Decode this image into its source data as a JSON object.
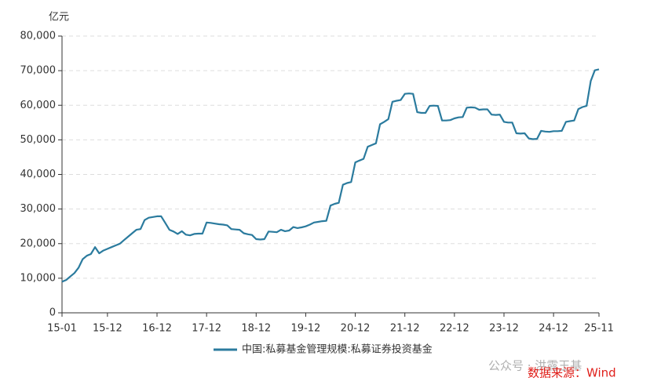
{
  "chart_data": {
    "type": "line",
    "y_unit": "亿元",
    "categories": [
      "15-01",
      null,
      null,
      null,
      null,
      null,
      null,
      null,
      null,
      null,
      null,
      "15-12",
      null,
      null,
      null,
      null,
      null,
      null,
      null,
      null,
      null,
      null,
      null,
      "16-12",
      null,
      null,
      null,
      null,
      null,
      null,
      null,
      null,
      null,
      null,
      null,
      "17-12",
      null,
      null,
      null,
      null,
      null,
      null,
      null,
      null,
      null,
      null,
      null,
      "18-12",
      null,
      null,
      null,
      null,
      null,
      null,
      null,
      null,
      null,
      null,
      null,
      "19-12",
      null,
      null,
      null,
      null,
      null,
      null,
      null,
      null,
      null,
      null,
      null,
      "20-12",
      null,
      null,
      null,
      null,
      null,
      null,
      null,
      null,
      null,
      null,
      null,
      "21-12",
      null,
      null,
      null,
      null,
      null,
      null,
      null,
      null,
      null,
      null,
      null,
      "22-12",
      null,
      null,
      null,
      null,
      null,
      null,
      null,
      null,
      null,
      null,
      null,
      "23-12",
      null,
      null,
      null,
      null,
      null,
      null,
      null,
      null,
      null,
      null,
      null,
      "24-12",
      null,
      null,
      null,
      null,
      null,
      null,
      null,
      null,
      null,
      null,
      "25-11"
    ],
    "series": [
      {
        "name": "中国:私募基金管理规模:私募证券投资基金",
        "color": "#2b7b9e",
        "values": [
          9000,
          9500,
          10500,
          11500,
          13000,
          15500,
          16500,
          17000,
          19000,
          17200,
          18000,
          18500,
          19000,
          19500,
          20000,
          21000,
          22000,
          23000,
          24000,
          24200,
          26800,
          27500,
          27700,
          27900,
          27900,
          26000,
          24000,
          23500,
          22800,
          23600,
          22600,
          22400,
          22800,
          22900,
          22900,
          26100,
          26000,
          25800,
          25600,
          25500,
          25300,
          24200,
          24100,
          24000,
          23000,
          22700,
          22500,
          21300,
          21200,
          21300,
          23500,
          23400,
          23300,
          24000,
          23600,
          23800,
          24800,
          24500,
          24700,
          25000,
          25500,
          26100,
          26300,
          26500,
          26600,
          31000,
          31500,
          31800,
          37000,
          37500,
          37800,
          43500,
          44000,
          44500,
          48000,
          48500,
          49000,
          54500,
          55200,
          56000,
          61000,
          61300,
          61500,
          63300,
          63400,
          63300,
          58000,
          57800,
          57800,
          59800,
          59900,
          59800,
          55600,
          55600,
          55700,
          56200,
          56500,
          56600,
          59300,
          59400,
          59300,
          58700,
          58800,
          58800,
          57300,
          57200,
          57300,
          55200,
          55000,
          55000,
          51900,
          51800,
          51900,
          50400,
          50200,
          50300,
          52600,
          52400,
          52300,
          52500,
          52500,
          52600,
          55200,
          55400,
          55600,
          58900,
          59500,
          59800,
          67000,
          70100,
          70400
        ]
      }
    ],
    "ylim": [
      0,
      80000
    ],
    "yticks": [
      0,
      {
        "value": 10000,
        "label": "10,000"
      },
      {
        "value": 20000,
        "label": "20,000"
      },
      {
        "value": 30000,
        "label": "30,000"
      },
      {
        "value": 40000,
        "label": "40,000"
      },
      {
        "value": 50000,
        "label": "50,000"
      },
      {
        "value": 60000,
        "label": "60,000"
      },
      {
        "value": 70000,
        "label": "70,000"
      },
      {
        "value": 80000,
        "label": "80,000"
      }
    ],
    "grid": true,
    "watermark": "公众号 · 洪露王基",
    "source": "数据来源：Wind"
  }
}
